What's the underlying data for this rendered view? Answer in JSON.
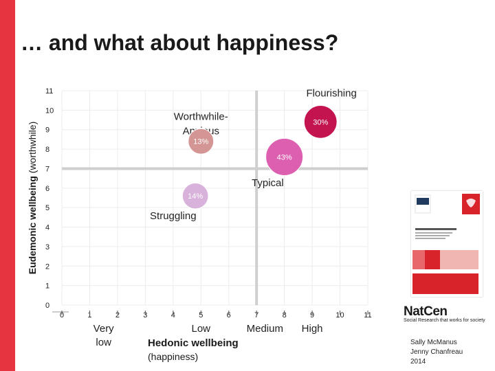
{
  "page": {
    "title": "… and what about happiness?",
    "accent_color": "#e63440"
  },
  "chart_data": {
    "type": "scatter",
    "title": "",
    "xlabel": "Hedonic wellbeing (happiness)",
    "ylabel": "Eudemonic wellbeing (worthwhile)",
    "xlim": [
      0,
      11
    ],
    "ylim": [
      0,
      11
    ],
    "x_ticks": [
      "0",
      "1",
      "2",
      "3",
      "4",
      "5",
      "6",
      "7",
      "8",
      "9",
      "10",
      "11"
    ],
    "y_ticks": [
      "0",
      "1",
      "2",
      "3",
      "4",
      "5",
      "6",
      "7",
      "8",
      "9",
      "10",
      "11"
    ],
    "x_category_labels": [
      {
        "label": "Very low",
        "x": 1.5
      },
      {
        "label": "Low",
        "x": 5
      },
      {
        "label": "Medium",
        "x": 7.3
      },
      {
        "label": "High",
        "x": 9
      }
    ],
    "divider_x": 7,
    "divider_y": 7,
    "grid": true,
    "quadrants": [
      {
        "label": "Flourishing",
        "x": 10.6,
        "y": 10.7
      },
      {
        "label": "Worthwhile-\nAnxious",
        "x": 5,
        "y": 9.5
      },
      {
        "label": "Typical",
        "x": 7.4,
        "y": 6.1
      },
      {
        "label": "Struggling",
        "x": 4,
        "y": 4.4
      }
    ],
    "points": [
      {
        "label": "30%",
        "x": 9.3,
        "y": 9.4,
        "size": 30,
        "color": "#c31450"
      },
      {
        "label": "13%",
        "x": 5,
        "y": 8.4,
        "size": 13,
        "color": "#d49695"
      },
      {
        "label": "43%",
        "x": 8,
        "y": 7.6,
        "size": 43,
        "color": "#dd60b0"
      },
      {
        "label": "14%",
        "x": 4.8,
        "y": 5.6,
        "size": 14,
        "color": "#d8b2da"
      }
    ]
  },
  "brand": {
    "name": "NatCen",
    "tagline": "Social Research that works for society"
  },
  "authors": [
    "Sally McManus",
    "Jenny Chanfreau",
    "2014"
  ],
  "report_cover": {
    "title": "Wellbeing in Wales",
    "logo_label": "SSR"
  }
}
